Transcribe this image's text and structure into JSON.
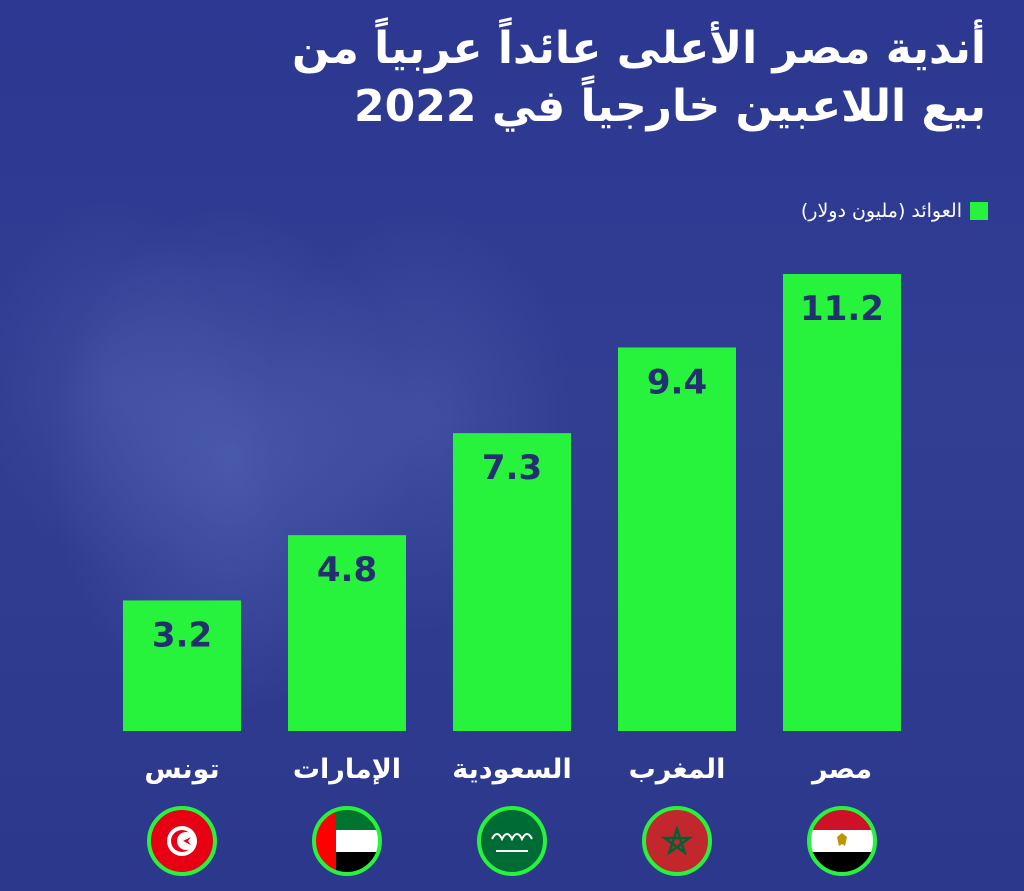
{
  "title_lines": [
    "أندية مصر الأعلى عائداً عربياً من",
    "بيع اللاعبين خارجياً في 2022"
  ],
  "legend": {
    "label": "العوائد (مليون دولار)"
  },
  "colors": {
    "background": "#2d3a8c",
    "bar": "#27f23c",
    "value_text": "#23306f",
    "label_text": "#ffffff"
  },
  "chart_data": {
    "type": "bar",
    "title": "أندية مصر الأعلى عائداً عربياً من بيع اللاعبين خارجياً في 2022",
    "categories": [
      "تونس",
      "الإمارات",
      "السعودية",
      "المغرب",
      "مصر"
    ],
    "series": [
      {
        "name": "العوائد (مليون دولار)",
        "values": [
          3.2,
          4.8,
          7.3,
          9.4,
          11.2
        ]
      }
    ],
    "value_labels": [
      "3.2",
      "4.8",
      "7.3",
      "9.4",
      "11.2"
    ],
    "flags": [
      "tunisia-flag-icon",
      "uae-flag-icon",
      "saudi-flag-icon",
      "morocco-flag-icon",
      "egypt-flag-icon"
    ],
    "xlabel": "",
    "ylabel": "",
    "ylim": [
      0,
      11.2
    ],
    "grid": false,
    "legend_position": "top-right"
  }
}
